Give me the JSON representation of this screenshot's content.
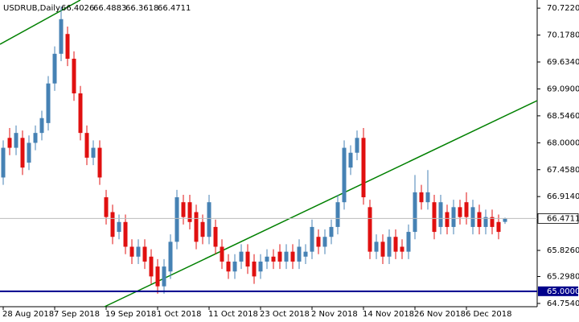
{
  "chart_data": {
    "type": "candlestick",
    "title": "USDRUB,Daily",
    "up_color": "#4682b4",
    "down_color": "#e01010",
    "categories": [
      "28 Aug 2018",
      null,
      null,
      null,
      null,
      null,
      null,
      null,
      "7 Sep 2018",
      null,
      null,
      null,
      null,
      null,
      null,
      null,
      "19 Sep 2018",
      null,
      null,
      null,
      null,
      null,
      null,
      null,
      "1 Oct 2018",
      null,
      null,
      null,
      null,
      null,
      null,
      null,
      "11 Oct 2018",
      null,
      null,
      null,
      null,
      null,
      null,
      null,
      "23 Oct 2018",
      null,
      null,
      null,
      null,
      null,
      null,
      null,
      "2 Nov 2018",
      null,
      null,
      null,
      null,
      null,
      null,
      null,
      "14 Nov 2018",
      null,
      null,
      null,
      null,
      null,
      null,
      null,
      "26 Nov 2018",
      null,
      null,
      null,
      null,
      null,
      null,
      null,
      "6 Dec 2018",
      null,
      null,
      null,
      null,
      null,
      null
    ],
    "open": [
      67.3,
      68.1,
      67.9,
      68.1,
      67.6,
      68.0,
      68.2,
      68.4,
      69.2,
      69.8,
      70.2,
      69.7,
      69.0,
      68.2,
      67.7,
      67.9,
      66.9,
      66.6,
      66.2,
      66.4,
      65.9,
      65.7,
      65.9,
      65.7,
      65.5,
      65.1,
      65.4,
      66.0,
      66.8,
      66.8,
      66.6,
      66.4,
      66.1,
      66.3,
      65.9,
      65.6,
      65.4,
      65.6,
      65.8,
      65.6,
      65.4,
      65.6,
      65.7,
      65.8,
      65.6,
      65.8,
      65.6,
      65.7,
      65.8,
      66.1,
      65.9,
      66.1,
      66.3,
      66.8,
      67.5,
      67.8,
      68.1,
      66.7,
      65.8,
      66.0,
      65.7,
      66.1,
      65.9,
      65.8,
      66.2,
      67.0,
      66.8,
      66.8,
      66.3,
      66.6,
      66.3,
      66.7,
      66.8,
      66.3,
      66.6,
      66.3,
      66.5,
      66.4,
      66.4026
    ],
    "high": [
      68.05,
      68.3,
      68.35,
      68.25,
      68.15,
      68.35,
      68.65,
      69.35,
      69.95,
      70.75,
      70.35,
      69.85,
      69.15,
      68.35,
      68.05,
      68.05,
      67.05,
      66.75,
      66.55,
      66.55,
      66.05,
      66.05,
      66.05,
      65.85,
      65.65,
      65.65,
      66.15,
      67.05,
      66.95,
      66.95,
      66.75,
      66.55,
      66.95,
      66.45,
      66.05,
      65.75,
      65.75,
      65.95,
      65.95,
      65.75,
      65.75,
      65.85,
      65.85,
      65.95,
      65.95,
      65.95,
      66.05,
      65.95,
      66.45,
      66.25,
      66.25,
      66.45,
      66.95,
      68.05,
      67.95,
      68.25,
      68.3,
      66.85,
      66.15,
      66.15,
      66.25,
      66.25,
      66.05,
      66.35,
      67.35,
      67.15,
      67.45,
      66.95,
      66.95,
      66.75,
      66.85,
      66.85,
      67.0,
      66.85,
      66.75,
      66.65,
      66.65,
      66.55,
      66.4883
    ],
    "low": [
      67.15,
      67.75,
      67.75,
      67.35,
      67.45,
      67.85,
      68.05,
      68.25,
      69.05,
      69.65,
      69.55,
      68.85,
      68.05,
      67.55,
      67.55,
      67.15,
      66.35,
      65.95,
      66.05,
      65.75,
      65.55,
      65.55,
      65.45,
      65.15,
      64.95,
      64.95,
      65.25,
      65.85,
      66.35,
      66.25,
      65.85,
      65.95,
      65.95,
      65.75,
      65.45,
      65.25,
      65.25,
      65.45,
      65.35,
      65.15,
      65.25,
      65.45,
      65.45,
      65.45,
      65.45,
      65.45,
      65.45,
      65.55,
      65.65,
      65.75,
      65.75,
      65.95,
      66.15,
      66.65,
      67.35,
      67.65,
      66.75,
      65.65,
      65.65,
      65.55,
      65.55,
      65.65,
      65.65,
      65.65,
      66.05,
      66.65,
      66.65,
      66.05,
      66.15,
      66.15,
      66.15,
      66.35,
      66.35,
      66.15,
      66.15,
      66.15,
      66.15,
      66.05,
      66.3618
    ],
    "close": [
      67.9,
      67.9,
      68.2,
      67.5,
      68.0,
      68.2,
      68.5,
      69.2,
      69.8,
      70.5,
      69.7,
      69.0,
      68.2,
      67.7,
      67.9,
      67.3,
      66.5,
      66.1,
      66.4,
      65.9,
      65.7,
      65.9,
      65.6,
      65.3,
      65.1,
      65.5,
      66.0,
      66.9,
      66.5,
      66.4,
      66.0,
      66.1,
      66.8,
      65.9,
      65.6,
      65.4,
      65.6,
      65.8,
      65.5,
      65.3,
      65.6,
      65.7,
      65.6,
      65.6,
      65.8,
      65.6,
      65.9,
      65.8,
      66.3,
      65.9,
      66.1,
      66.3,
      66.8,
      67.9,
      67.8,
      68.1,
      66.9,
      65.8,
      66.0,
      65.7,
      66.1,
      65.8,
      65.8,
      66.2,
      67.0,
      66.8,
      67.0,
      66.2,
      66.8,
      66.3,
      66.7,
      66.5,
      66.5,
      66.7,
      66.3,
      66.5,
      66.3,
      66.2,
      66.4711
    ],
    "ylim": [
      64.688,
      70.887
    ],
    "yticks": [
      {
        "value": 70.722,
        "label": "70.7220"
      },
      {
        "value": 70.178,
        "label": "70.1780"
      },
      {
        "value": 69.634,
        "label": "69.6340"
      },
      {
        "value": 69.09,
        "label": "69.0900"
      },
      {
        "value": 68.546,
        "label": "68.5460"
      },
      {
        "value": 68.0,
        "label": "68.0000"
      },
      {
        "value": 67.458,
        "label": "67.4580"
      },
      {
        "value": 66.914,
        "label": "66.9140"
      },
      {
        "value": 65.826,
        "label": "65.8260"
      },
      {
        "value": 65.298,
        "label": "65.2980"
      },
      {
        "value": 64.754,
        "label": "64.7540"
      }
    ],
    "level": {
      "value": 65,
      "label": "65.0000",
      "color": "#00008b"
    }
  }
}
